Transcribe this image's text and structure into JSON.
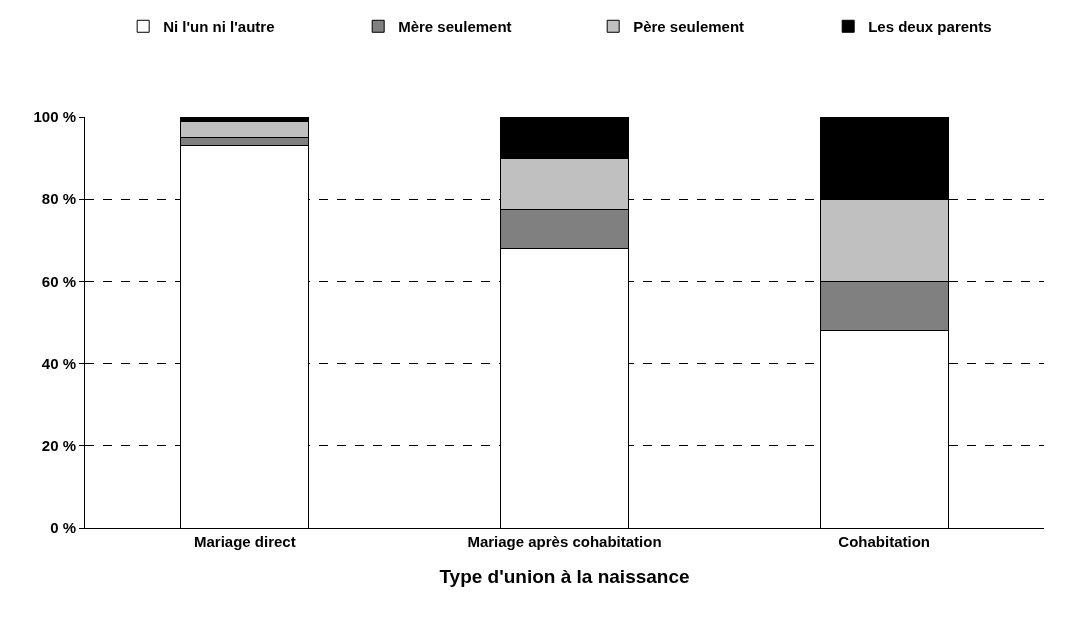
{
  "chart_data": {
    "type": "bar",
    "stacked": true,
    "xlabel": "Type d'union à la naissance",
    "categories": [
      "Mariage direct",
      "Mariage après cohabitation",
      "Cohabitation"
    ],
    "series": [
      {
        "name": "Ni l'un ni l'autre",
        "color": "#ffffff",
        "values": [
          93,
          68,
          48
        ]
      },
      {
        "name": "Mère seulement",
        "color": "#808080",
        "values": [
          2,
          9.5,
          12
        ]
      },
      {
        "name": "Père seulement",
        "color": "#c0c0c0",
        "values": [
          4,
          12.5,
          20
        ]
      },
      {
        "name": "Les deux parents",
        "color": "#000000",
        "values": [
          1,
          10,
          20
        ]
      }
    ],
    "ylim": [
      0,
      100
    ],
    "yticks": [
      {
        "value": 0,
        "label": "0 %"
      },
      {
        "value": 20,
        "label": "20 %"
      },
      {
        "value": 40,
        "label": "40 %"
      },
      {
        "value": 60,
        "label": "60 %"
      },
      {
        "value": 80,
        "label": "80 %"
      },
      {
        "value": 100,
        "label": "100 %"
      }
    ],
    "grid": "y",
    "legend": "top right"
  }
}
